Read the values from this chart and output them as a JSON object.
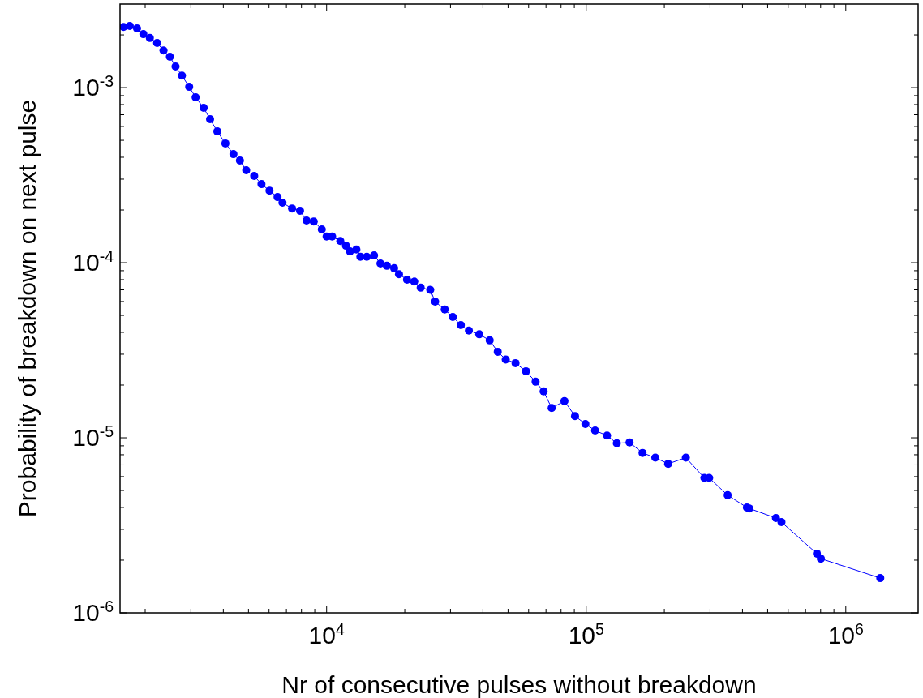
{
  "chart_data": {
    "type": "line",
    "xlabel": "Nr of consecutive pulses without breakdown",
    "ylabel": "Probability of breakdown on next pulse",
    "log": "xy",
    "grid": false,
    "marker": "circle",
    "line_style": "solid",
    "xlim": [
      1600,
      1900000
    ],
    "ylim": [
      1e-06,
      0.003
    ],
    "xticks": [
      {
        "value": 2000,
        "label": null
      },
      {
        "value": 3000,
        "label": null
      },
      {
        "value": 4000,
        "label": null
      },
      {
        "value": 5000,
        "label": null
      },
      {
        "value": 6000,
        "label": null
      },
      {
        "value": 7000,
        "label": null
      },
      {
        "value": 8000,
        "label": null
      },
      {
        "value": 9000,
        "label": null
      },
      {
        "value": 10000,
        "label": "10$^{4}$"
      },
      {
        "value": 20000,
        "label": null
      },
      {
        "value": 30000,
        "label": null
      },
      {
        "value": 40000,
        "label": null
      },
      {
        "value": 50000,
        "label": null
      },
      {
        "value": 60000,
        "label": null
      },
      {
        "value": 70000,
        "label": null
      },
      {
        "value": 80000,
        "label": null
      },
      {
        "value": 90000,
        "label": null
      },
      {
        "value": 100000,
        "label": "10$^{5}$"
      },
      {
        "value": 200000,
        "label": null
      },
      {
        "value": 300000,
        "label": null
      },
      {
        "value": 400000,
        "label": null
      },
      {
        "value": 500000,
        "label": null
      },
      {
        "value": 600000,
        "label": null
      },
      {
        "value": 700000,
        "label": null
      },
      {
        "value": 800000,
        "label": null
      },
      {
        "value": 900000,
        "label": null
      },
      {
        "value": 1000000,
        "label": "10$^{6}$"
      }
    ],
    "yticks": [
      {
        "value": 1e-06,
        "label": "10$^{-6}$"
      },
      {
        "value": 2e-06,
        "label": null
      },
      {
        "value": 3e-06,
        "label": null
      },
      {
        "value": 4e-06,
        "label": null
      },
      {
        "value": 5e-06,
        "label": null
      },
      {
        "value": 6e-06,
        "label": null
      },
      {
        "value": 7e-06,
        "label": null
      },
      {
        "value": 8e-06,
        "label": null
      },
      {
        "value": 9e-06,
        "label": null
      },
      {
        "value": 1e-05,
        "label": "10$^{-5}$"
      },
      {
        "value": 2e-05,
        "label": null
      },
      {
        "value": 3e-05,
        "label": null
      },
      {
        "value": 4e-05,
        "label": null
      },
      {
        "value": 5e-05,
        "label": null
      },
      {
        "value": 6e-05,
        "label": null
      },
      {
        "value": 7e-05,
        "label": null
      },
      {
        "value": 8e-05,
        "label": null
      },
      {
        "value": 9e-05,
        "label": null
      },
      {
        "value": 0.0001,
        "label": "10$^{-4}$"
      },
      {
        "value": 0.0002,
        "label": null
      },
      {
        "value": 0.0003,
        "label": null
      },
      {
        "value": 0.0004,
        "label": null
      },
      {
        "value": 0.0005,
        "label": null
      },
      {
        "value": 0.0006,
        "label": null
      },
      {
        "value": 0.0007,
        "label": null
      },
      {
        "value": 0.0008,
        "label": null
      },
      {
        "value": 0.0009,
        "label": null
      },
      {
        "value": 0.001,
        "label": "10$^{-3}$"
      },
      {
        "value": 0.002,
        "label": null
      }
    ],
    "series": [
      {
        "color": "#0000ff",
        "x": [
          1650,
          1744,
          1860,
          1968,
          2084,
          2223,
          2353,
          2490,
          2618,
          2771,
          2955,
          3128,
          3360,
          3556,
          3793,
          4074,
          4375,
          4634,
          4900,
          5260,
          5610,
          6025,
          6470,
          6760,
          7360,
          7900,
          8370,
          8920,
          9580,
          10000,
          10500,
          11290,
          11870,
          12300,
          13020,
          13490,
          14280,
          15230,
          16120,
          17060,
          18200,
          19000,
          20400,
          21750,
          23030,
          25070,
          26180,
          28510,
          30620,
          32890,
          35320,
          38730,
          42480,
          45630,
          48980,
          53430,
          58600,
          63830,
          68550,
          73620,
          82450,
          90550,
          99300,
          108200,
          120300,
          131200,
          146900,
          164800,
          184600,
          206900,
          242000,
          285300,
          297700,
          350700,
          416000,
          424800,
          538000,
          565300,
          773900,
          801700,
          1358000
        ],
        "values": [
          0.00222,
          0.00225,
          0.00218,
          0.00202,
          0.00192,
          0.0018,
          0.00163,
          0.0015,
          0.00132,
          0.00117,
          0.00101,
          0.00088,
          0.000766,
          0.00066,
          0.000562,
          0.00048,
          0.000417,
          0.000383,
          0.000337,
          0.000313,
          0.000281,
          0.000258,
          0.000237,
          0.00022,
          0.000204,
          0.000198,
          0.000174,
          0.000172,
          0.000155,
          0.000141,
          0.000141,
          0.000133,
          0.000125,
          0.000116,
          0.000119,
          0.000108,
          0.000108,
          0.00011,
          9.9e-05,
          9.6e-05,
          9.3e-05,
          8.6e-05,
          8e-05,
          7.8e-05,
          7.2e-05,
          7e-05,
          6e-05,
          5.4e-05,
          4.9e-05,
          4.4e-05,
          4.1e-05,
          3.9e-05,
          3.6e-05,
          3.1e-05,
          2.8e-05,
          2.67e-05,
          2.4e-05,
          2.09e-05,
          1.84e-05,
          1.48e-05,
          1.62e-05,
          1.33e-05,
          1.2e-05,
          1.1e-05,
          1.03e-05,
          9.3e-06,
          9.4e-06,
          8.2e-06,
          7.7e-06,
          7.1e-06,
          7.7e-06,
          5.9e-06,
          5.9e-06,
          4.7e-06,
          4e-06,
          3.95e-06,
          3.48e-06,
          3.3e-06,
          2.18e-06,
          2.04e-06,
          1.58e-06
        ]
      }
    ]
  }
}
